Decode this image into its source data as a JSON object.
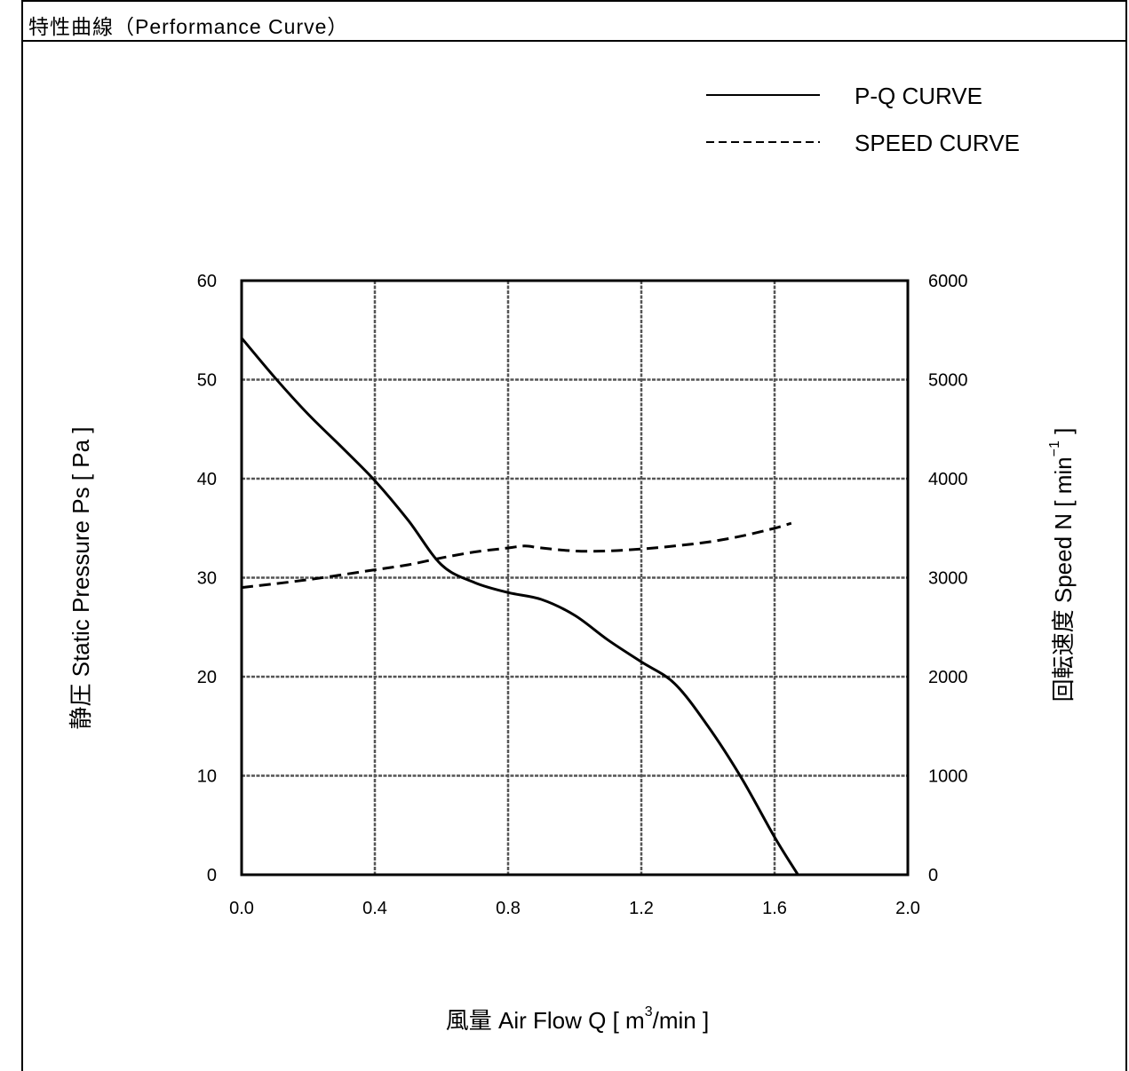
{
  "page": {
    "title": "特性曲線（Performance Curve）"
  },
  "chart_data": {
    "type": "line",
    "xlabel": {
      "prefix": "風量 Air Flow Q [ m",
      "sup": "3",
      "suffix": "/min ]"
    },
    "ylabel_left": "静圧 Static Pressure Ps [ Pa ]",
    "ylabel_right": {
      "prefix": "回転速度 Speed N [ min",
      "sup": "−1",
      "suffix": " ]"
    },
    "xlim": [
      0,
      2.0
    ],
    "ylim_left": [
      0,
      60
    ],
    "ylim_right": [
      0,
      6000
    ],
    "x_ticks": [
      "0.0",
      "0.4",
      "0.8",
      "1.2",
      "1.6",
      "2.0"
    ],
    "y_ticks_left": [
      "0",
      "10",
      "20",
      "30",
      "40",
      "50",
      "60"
    ],
    "y_ticks_right": [
      "0",
      "1000",
      "2000",
      "3000",
      "4000",
      "5000",
      "6000"
    ],
    "grid": true,
    "legend_position": "top-right",
    "series": [
      {
        "name": "P-Q CURVE",
        "axis": "left",
        "style": "solid",
        "x": [
          0.0,
          0.1,
          0.2,
          0.3,
          0.4,
          0.5,
          0.6,
          0.7,
          0.8,
          0.9,
          1.0,
          1.1,
          1.2,
          1.3,
          1.4,
          1.5,
          1.6,
          1.67
        ],
        "y": [
          54.2,
          50.2,
          46.5,
          43.2,
          39.8,
          35.8,
          31.3,
          29.5,
          28.5,
          27.8,
          26.2,
          23.7,
          21.5,
          19.3,
          15.0,
          9.8,
          3.8,
          0.0
        ]
      },
      {
        "name": "SPEED CURVE",
        "axis": "right",
        "style": "dashed",
        "x": [
          0.0,
          0.2,
          0.4,
          0.5,
          0.6,
          0.7,
          0.8,
          0.85,
          0.9,
          1.0,
          1.1,
          1.2,
          1.3,
          1.4,
          1.5,
          1.6,
          1.65
        ],
        "y": [
          2900,
          2980,
          3080,
          3130,
          3200,
          3260,
          3300,
          3320,
          3300,
          3270,
          3270,
          3290,
          3320,
          3360,
          3420,
          3500,
          3550
        ]
      }
    ]
  }
}
